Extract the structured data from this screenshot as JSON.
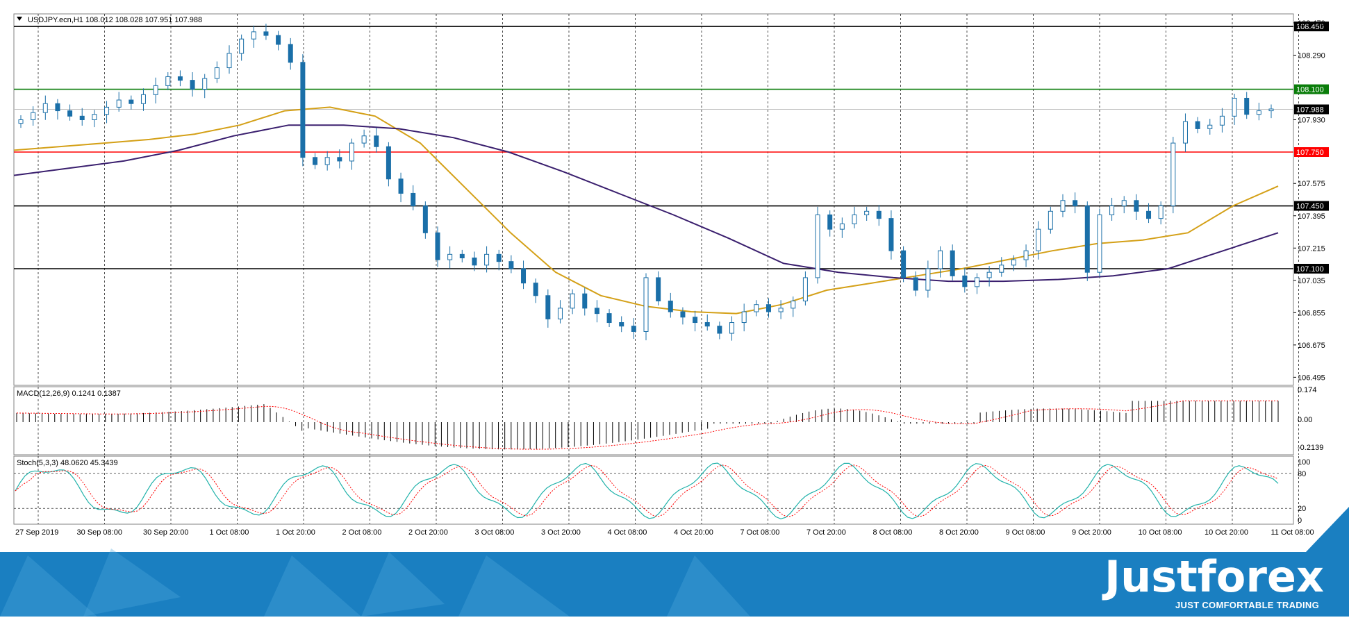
{
  "header": {
    "symbol_line": "USDJPY.ecn,H1  108.012 108.028 107.951 107.988"
  },
  "price_axis": {
    "ticks": [
      "108.470",
      "108.290",
      "107.930",
      "107.575",
      "107.395",
      "107.215",
      "107.035",
      "106.855",
      "106.675",
      "106.495"
    ]
  },
  "macd": {
    "title": "MACD(12,26,9) 0.1241 0.1387",
    "ticks": [
      "0.174",
      "0.00",
      "-0.2139"
    ]
  },
  "stoch": {
    "title": "Stoch(5,3,3) 48.0620 45.3439",
    "ticks": [
      "100",
      "80",
      "20",
      "0"
    ]
  },
  "time_axis": {
    "labels": [
      "27 Sep 2019",
      "30 Sep 08:00",
      "30 Sep 20:00",
      "1 Oct 08:00",
      "1 Oct 20:00",
      "2 Oct 08:00",
      "2 Oct 20:00",
      "3 Oct 08:00",
      "3 Oct 20:00",
      "4 Oct 08:00",
      "4 Oct 20:00",
      "7 Oct 08:00",
      "7 Oct 20:00",
      "8 Oct 08:00",
      "8 Oct 20:00",
      "9 Oct 08:00",
      "9 Oct 20:00",
      "10 Oct 08:00",
      "10 Oct 20:00",
      "11 Oct 08:00"
    ]
  },
  "levels": [
    {
      "value": 108.45,
      "label": "108.450",
      "color": "#000000"
    },
    {
      "value": 108.1,
      "label": "108.100",
      "color": "#0a7d0a"
    },
    {
      "value": 107.988,
      "label": "107.988",
      "color": "#c0c0c0"
    },
    {
      "value": 107.75,
      "label": "107.750",
      "color": "#ff0000"
    },
    {
      "value": 107.45,
      "label": "107.450",
      "color": "#000000"
    },
    {
      "value": 107.1,
      "label": "107.100",
      "color": "#000000"
    }
  ],
  "colors": {
    "candle": "#1a6fa8",
    "ma_fast": "#d4a017",
    "ma_slow": "#3a1f6e",
    "macd_hist": "#000000",
    "macd_signal": "#ff0000",
    "stoch_main": "#20b2aa",
    "stoch_signal": "#ff0000",
    "banner": "#1a7fc1"
  },
  "brand": {
    "name": "Justforex",
    "tagline": "JUST COMFORTABLE TRADING"
  },
  "chart_data": {
    "type": "candlestick",
    "symbol": "USDJPY.ecn",
    "timeframe": "H1",
    "ylim": [
      106.45,
      108.52
    ],
    "series": [
      {
        "name": "close",
        "values": [
          107.93,
          107.97,
          108.02,
          107.98,
          107.95,
          107.93,
          107.96,
          108.0,
          108.04,
          108.02,
          108.07,
          108.12,
          108.17,
          108.15,
          108.1,
          108.16,
          108.22,
          108.3,
          108.38,
          108.42,
          108.4,
          108.35,
          108.25,
          107.72,
          107.68,
          107.72,
          107.7,
          107.8,
          107.84,
          107.78,
          107.6,
          107.52,
          107.45,
          107.3,
          107.15,
          107.18,
          107.16,
          107.12,
          107.18,
          107.14,
          107.1,
          107.02,
          106.95,
          106.82,
          106.88,
          106.96,
          106.88,
          106.85,
          106.8,
          106.78,
          106.75,
          107.05,
          106.92,
          106.86,
          106.83,
          106.8,
          106.78,
          106.74,
          106.8,
          106.86,
          106.9,
          106.86,
          106.88,
          106.92,
          107.05,
          107.4,
          107.32,
          107.35,
          107.4,
          107.42,
          107.38,
          107.2,
          107.05,
          106.98,
          107.1,
          107.2,
          107.06,
          107.0,
          107.05,
          107.08,
          107.12,
          107.15,
          107.2,
          107.32,
          107.42,
          107.48,
          107.45,
          107.08,
          107.4,
          107.45,
          107.48,
          107.42,
          107.38,
          107.45,
          107.8,
          107.92,
          107.88,
          107.9,
          107.95,
          108.05,
          107.96,
          107.98,
          107.99
        ]
      },
      {
        "name": "MA fast",
        "values": [
          107.76,
          107.78,
          107.8,
          107.82,
          107.85,
          107.9,
          107.98,
          108.0,
          107.95,
          107.8,
          107.55,
          107.3,
          107.08,
          106.95,
          106.89,
          106.86,
          106.85,
          106.9,
          106.98,
          107.02,
          107.06,
          107.1,
          107.15,
          107.2,
          107.24,
          107.26,
          107.3,
          107.45,
          107.56
        ]
      },
      {
        "name": "MA slow",
        "values": [
          107.62,
          107.66,
          107.7,
          107.76,
          107.84,
          107.9,
          107.9,
          107.88,
          107.83,
          107.75,
          107.64,
          107.52,
          107.4,
          107.27,
          107.13,
          107.08,
          107.05,
          107.03,
          107.03,
          107.04,
          107.06,
          107.1,
          107.2,
          107.3
        ]
      }
    ]
  }
}
